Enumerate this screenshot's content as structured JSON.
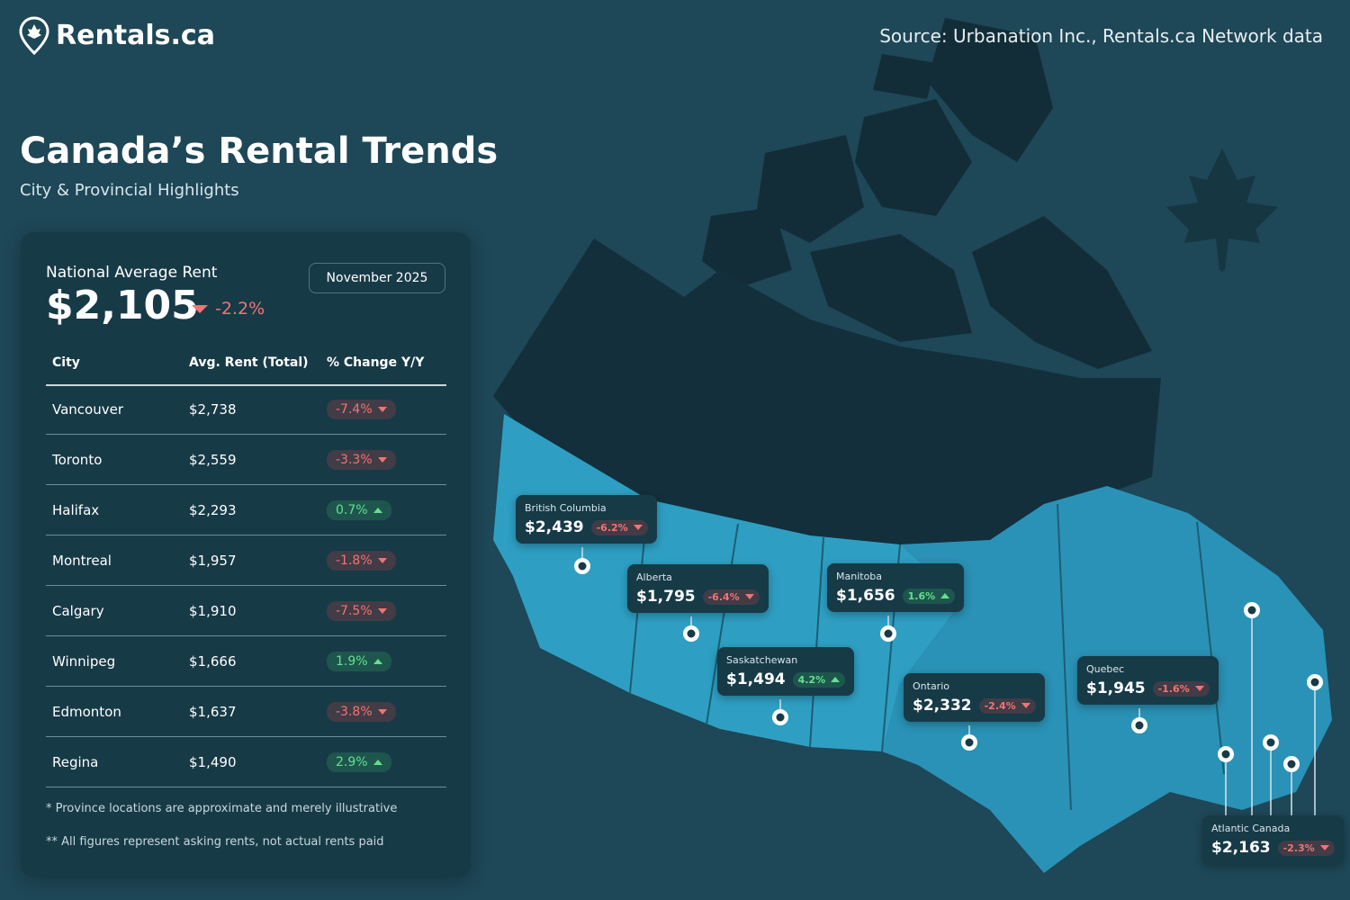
{
  "header": {
    "brand": "Rentals.ca",
    "source": "Source: Urbanation Inc., Rentals.ca Network data",
    "title": "Canada’s Rental Trends",
    "subtitle": "City & Provincial Highlights"
  },
  "summary": {
    "label": "National Average Rent",
    "value": "$2,105",
    "change": "-2.2%",
    "period": "November 2025"
  },
  "table": {
    "columns": [
      "City",
      "Avg. Rent (Total)",
      "% Change Y/Y"
    ],
    "rows": [
      [
        "Vancouver",
        "$2,738",
        "-7.4%"
      ],
      [
        "Toronto",
        "$2,559",
        "-3.3%"
      ],
      [
        "Halifax",
        "$2,293",
        "0.7%"
      ],
      [
        "Montreal",
        "$1,957",
        "-1.8%"
      ],
      [
        "Calgary",
        "$1,910",
        "-7.5%"
      ],
      [
        "Winnipeg",
        "$1,666",
        "1.9%"
      ],
      [
        "Edmonton",
        "$1,637",
        "-3.8%"
      ],
      [
        "Regina",
        "$1,490",
        "2.9%"
      ]
    ]
  },
  "notes": [
    "* Province locations are approximate and merely illustrative",
    "** All figures represent asking rents, not actual rents paid"
  ],
  "regions": [
    {
      "name": "British Columbia",
      "rent": "$2,439",
      "change": "-6.2%"
    },
    {
      "name": "Alberta",
      "rent": "$1,795",
      "change": "-6.4%"
    },
    {
      "name": "Saskatchewan",
      "rent": "$1,494",
      "change": "4.2%"
    },
    {
      "name": "Manitoba",
      "rent": "$1,656",
      "change": "1.6%"
    },
    {
      "name": "Ontario",
      "rent": "$2,332",
      "change": "-2.4%"
    },
    {
      "name": "Quebec",
      "rent": "$1,945",
      "change": "-1.6%"
    },
    {
      "name": "Atlantic Canada",
      "rent": "$2,163",
      "change": "-2.3%"
    }
  ]
}
